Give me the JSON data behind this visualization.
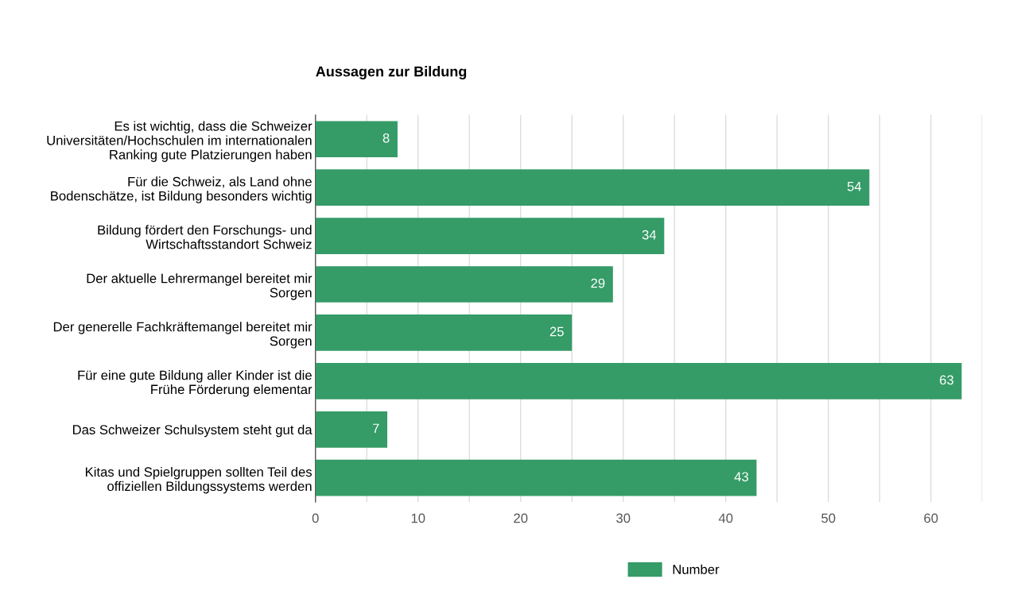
{
  "chart_data": {
    "type": "bar",
    "orientation": "horizontal",
    "title": "Aussagen zur Bildung",
    "categories": [
      "Es ist wichtig, dass die Schweizer\nUniversitäten/Hochschulen im internationalen\nRanking gute Platzierungen haben",
      "Für die Schweiz, als Land ohne\nBodenschätze, ist Bildung besonders wichtig",
      "Bildung fördert den Forschungs- und\nWirtschaftsstandort Schweiz",
      "Der aktuelle Lehrermangel bereitet mir\nSorgen",
      "Der generelle Fachkräftemangel bereitet mir\nSorgen",
      "Für eine gute Bildung aller Kinder ist die\nFrühe Förderung elementar",
      "Das Schweizer Schulsystem steht gut da",
      "Kitas und Spielgruppen sollten Teil des\noffiziellen Bildungssystems werden"
    ],
    "series": [
      {
        "name": "Number",
        "color": "#359b67",
        "values": [
          8,
          54,
          34,
          29,
          25,
          63,
          7,
          43
        ]
      }
    ],
    "xlim": [
      0,
      65
    ],
    "xticks": [
      0,
      {
        "value": 5,
        "label": null
      },
      10,
      {
        "value": 15,
        "label": null
      },
      20,
      {
        "value": 25,
        "label": null
      },
      30,
      {
        "value": 35,
        "label": null
      },
      40,
      {
        "value": 45,
        "label": null
      },
      50,
      {
        "value": 55,
        "label": null
      },
      60,
      {
        "value": 65,
        "label": null
      }
    ],
    "grid": "x",
    "legend": "bottom",
    "data_labels": true
  }
}
